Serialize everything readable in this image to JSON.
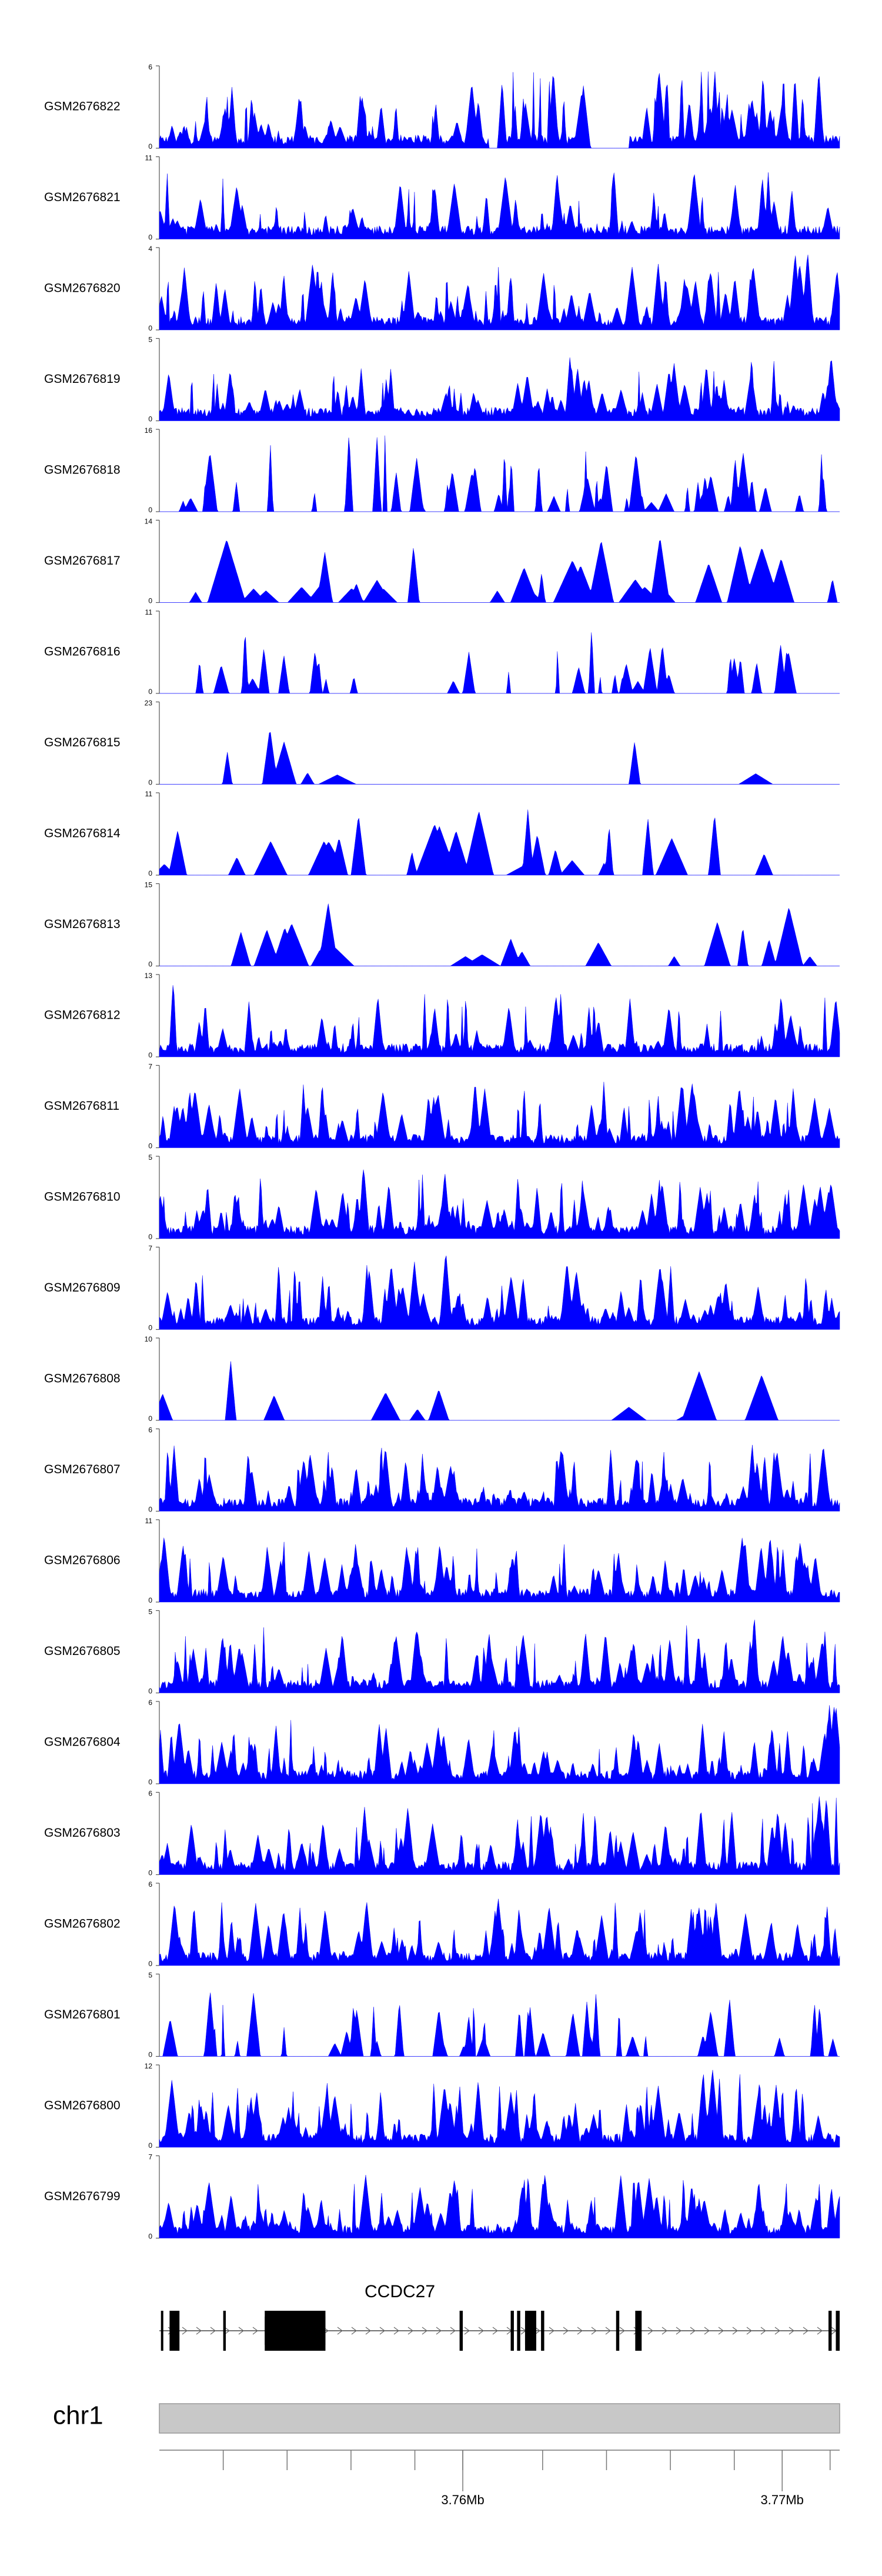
{
  "chart_data": {
    "type": "area",
    "x_unit": "bp",
    "xlim": [
      3750500,
      3771800
    ],
    "fill_color": "#0000ff",
    "series": [
      {
        "name": "GSM2676822",
        "ymax": 6,
        "yticks": [
          "0",
          "6"
        ],
        "shape": {
          "seed": 22,
          "peaks": 95,
          "gaps": [
            [
              3760800,
              3761200
            ],
            [
              3763800,
              3765200
            ]
          ],
          "boost": [
            [
              3761300,
              3763700,
              0.45
            ],
            [
              3765800,
              3771800,
              0.35
            ]
          ]
        }
      },
      {
        "name": "GSM2676821",
        "ymax": 11,
        "yticks": [
          "0",
          "11"
        ],
        "shape": {
          "seed": 21,
          "peaks": 90,
          "gaps": [],
          "boost": [
            [
              3768200,
              3768500,
              0.7
            ]
          ]
        }
      },
      {
        "name": "GSM2676820",
        "ymax": 4,
        "yticks": [
          "0",
          "4"
        ],
        "shape": {
          "seed": 20,
          "peaks": 120,
          "gaps": [],
          "boost": [
            [
              3768500,
              3771800,
              0.25
            ]
          ]
        }
      },
      {
        "name": "GSM2676819",
        "ymax": 5,
        "yticks": [
          "0",
          "5"
        ],
        "shape": {
          "seed": 19,
          "peaks": 110,
          "gaps": [],
          "boost": []
        }
      },
      {
        "name": "GSM2676818",
        "ymax": 16,
        "yticks": [
          "0",
          "16"
        ],
        "shape": {
          "seed": 18,
          "peaks": 55,
          "gaps": [],
          "boost": [
            [
              3756300,
              3757600,
              0.7
            ]
          ]
        }
      },
      {
        "name": "GSM2676817",
        "ymax": 14,
        "yticks": [
          "0",
          "14"
        ],
        "shape": {
          "seed": 17,
          "peaks": 30,
          "gaps": [],
          "boost": [
            [
              3756900,
              3757300,
              0.8
            ]
          ]
        }
      },
      {
        "name": "GSM2676816",
        "ymax": 11,
        "yticks": [
          "0",
          "11"
        ],
        "shape": {
          "seed": 16,
          "peaks": 40,
          "gaps": [
            [
              3756700,
              3759700
            ]
          ],
          "boost": [
            [
              3765500,
              3765800,
              0.6
            ]
          ]
        }
      },
      {
        "name": "GSM2676815",
        "ymax": 23,
        "yticks": [
          "0",
          "23"
        ],
        "shape": {
          "seed": 15,
          "peaks": 14,
          "gaps": [
            [
              3757500,
              3765000
            ],
            [
              3770000,
              3771800
            ]
          ],
          "boost": [
            [
              3754800,
              3755000,
              0.5
            ],
            [
              3768000,
              3768300,
              0.7
            ]
          ]
        }
      },
      {
        "name": "GSM2676814",
        "ymax": 11,
        "yticks": [
          "0",
          "11"
        ],
        "shape": {
          "seed": 14,
          "peaks": 26,
          "gaps": [
            [
              3770000,
              3771800
            ]
          ],
          "boost": [
            [
              3764000,
              3764400,
              0.7
            ]
          ]
        }
      },
      {
        "name": "GSM2676813",
        "ymax": 15,
        "yticks": [
          "0",
          "15"
        ],
        "shape": {
          "seed": 13,
          "peaks": 24,
          "gaps": [
            [
              3750500,
              3752000
            ]
          ],
          "boost": [
            [
              3756700,
              3757200,
              0.8
            ]
          ]
        }
      },
      {
        "name": "GSM2676812",
        "ymax": 13,
        "yticks": [
          "0",
          "13"
        ],
        "shape": {
          "seed": 12,
          "peaks": 80,
          "gaps": [],
          "boost": [
            [
              3750900,
              3751300,
              0.5
            ]
          ]
        }
      },
      {
        "name": "GSM2676811",
        "ymax": 7,
        "yticks": [
          "0",
          "7"
        ],
        "shape": {
          "seed": 11,
          "peaks": 130,
          "gaps": [],
          "boost": []
        }
      },
      {
        "name": "GSM2676810",
        "ymax": 5,
        "yticks": [
          "0",
          "5"
        ],
        "shape": {
          "seed": 10,
          "peaks": 130,
          "gaps": [],
          "boost": [
            [
              3756800,
              3757600,
              0.35
            ]
          ]
        }
      },
      {
        "name": "GSM2676809",
        "ymax": 7,
        "yticks": [
          "0",
          "7"
        ],
        "shape": {
          "seed": 9,
          "peaks": 110,
          "gaps": [],
          "boost": [
            [
              3759200,
              3759700,
              0.5
            ]
          ]
        }
      },
      {
        "name": "GSM2676808",
        "ymax": 10,
        "yticks": [
          "0",
          "10"
        ],
        "shape": {
          "seed": 8,
          "peaks": 12,
          "gaps": [
            [
              3770000,
              3771800
            ]
          ],
          "boost": [
            [
              3764000,
              3764300,
              0.7
            ],
            [
              3767800,
              3768400,
              0.6
            ]
          ]
        }
      },
      {
        "name": "GSM2676807",
        "ymax": 6,
        "yticks": [
          "0",
          "6"
        ],
        "shape": {
          "seed": 7,
          "peaks": 110,
          "gaps": [],
          "boost": [
            [
              3757400,
              3757800,
              0.7
            ]
          ]
        }
      },
      {
        "name": "GSM2676806",
        "ymax": 11,
        "yticks": [
          "0",
          "11"
        ],
        "shape": {
          "seed": 6,
          "peaks": 120,
          "gaps": [],
          "boost": [
            [
              3762400,
              3762800,
              0.6
            ]
          ]
        }
      },
      {
        "name": "GSM2676805",
        "ymax": 5,
        "yticks": [
          "0",
          "5"
        ],
        "shape": {
          "seed": 5,
          "peaks": 120,
          "gaps": [],
          "boost": [
            [
              3769000,
              3769400,
              0.5
            ]
          ]
        }
      },
      {
        "name": "GSM2676804",
        "ymax": 6,
        "yticks": [
          "0",
          "6"
        ],
        "shape": {
          "seed": 4,
          "peaks": 120,
          "gaps": [],
          "boost": [
            [
              3771000,
              3771800,
              0.5
            ]
          ]
        }
      },
      {
        "name": "GSM2676803",
        "ymax": 6,
        "yticks": [
          "0",
          "6"
        ],
        "shape": {
          "seed": 3,
          "peaks": 120,
          "gaps": [],
          "boost": [
            [
              3770500,
              3771800,
              0.5
            ]
          ]
        }
      },
      {
        "name": "GSM2676802",
        "ymax": 6,
        "yticks": [
          "0",
          "6"
        ],
        "shape": {
          "seed": 2,
          "peaks": 120,
          "gaps": [],
          "boost": []
        }
      },
      {
        "name": "GSM2676801",
        "ymax": 5,
        "yticks": [
          "0",
          "5"
        ],
        "shape": {
          "seed": 1,
          "peaks": 40,
          "gaps": [],
          "boost": [
            [
              3751800,
              3752200,
              0.7
            ]
          ]
        }
      },
      {
        "name": "GSM2676800",
        "ymax": 12,
        "yticks": [
          "0",
          "12"
        ],
        "shape": {
          "seed": 100,
          "peaks": 140,
          "gaps": [],
          "boost": [
            [
              3767500,
              3770500,
              0.25
            ]
          ]
        }
      },
      {
        "name": "GSM2676799",
        "ymax": 7,
        "yticks": [
          "0",
          "7"
        ],
        "shape": {
          "seed": 99,
          "peaks": 140,
          "gaps": [],
          "boost": [
            [
              3759500,
              3760000,
              0.5
            ]
          ]
        }
      }
    ],
    "gene": {
      "name": "CCDC27",
      "start": 3750500,
      "end": 3771800,
      "strand": "+",
      "exons": [
        [
          3750550,
          3750620
        ],
        [
          3750820,
          3751130
        ],
        [
          3752500,
          3752580
        ],
        [
          3753800,
          3755700
        ],
        [
          3755100,
          3755300
        ],
        [
          3759900,
          3760000
        ],
        [
          3761500,
          3761600
        ],
        [
          3761700,
          3761800
        ],
        [
          3761950,
          3762300
        ],
        [
          3762450,
          3762550
        ],
        [
          3764800,
          3764900
        ],
        [
          3765400,
          3765600
        ],
        [
          3771450,
          3771550
        ],
        [
          3771680,
          3771800
        ]
      ],
      "thick": [
        [
          3753800,
          3755700
        ],
        [
          3761950,
          3762300
        ]
      ]
    },
    "chromosome": {
      "label": "chr1"
    },
    "axis": {
      "ticks": [
        3752500,
        3754500,
        3756500,
        3758500,
        3760000,
        3762500,
        3764500,
        3766500,
        3768500,
        3770000,
        3771500
      ],
      "labeled_ticks": [
        {
          "pos": 3760000,
          "label": "3.76Mb"
        },
        {
          "pos": 3770000,
          "label": "3.77Mb"
        }
      ]
    }
  }
}
